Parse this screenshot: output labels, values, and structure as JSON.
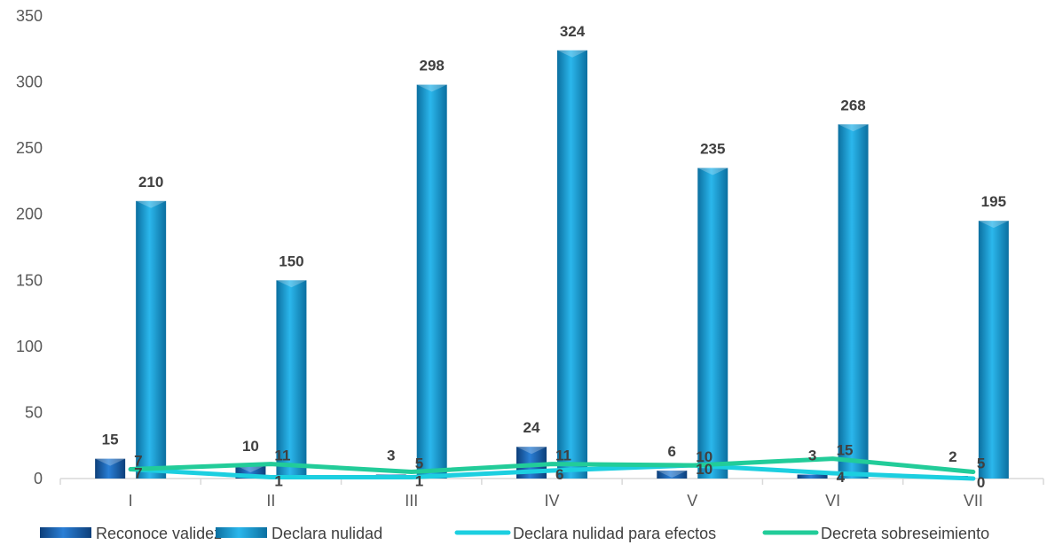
{
  "chart_data": {
    "type": "bar",
    "categories": [
      "I",
      "II",
      "III",
      "IV",
      "V",
      "VI",
      "VII"
    ],
    "ylim": [
      0,
      350
    ],
    "yticks": [
      0,
      50,
      100,
      150,
      200,
      250,
      300,
      350
    ],
    "grid": false,
    "legend_position": "bottom",
    "series": [
      {
        "name": "Reconoce validez",
        "kind": "bar",
        "color": "#1f6fc5",
        "values": [
          15,
          10,
          3,
          24,
          6,
          3,
          2
        ]
      },
      {
        "name": "Declara nulidad",
        "kind": "bar",
        "color": "#1ea3dd",
        "values": [
          210,
          150,
          298,
          324,
          235,
          268,
          195
        ]
      },
      {
        "name": "Declara nulidad para efectos",
        "kind": "line",
        "color": "#1ccfe0",
        "values": [
          7,
          1,
          1,
          6,
          10,
          4,
          0
        ]
      },
      {
        "name": "Decreta sobreseimiento",
        "kind": "line",
        "color": "#22cc99",
        "values": [
          7,
          11,
          5,
          11,
          10,
          15,
          5
        ]
      }
    ]
  }
}
